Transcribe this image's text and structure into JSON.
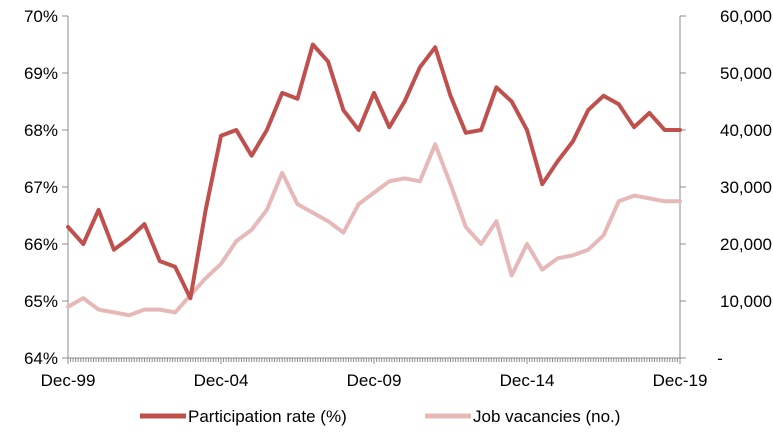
{
  "chart_data": {
    "type": "line",
    "x": [
      "Dec-99",
      "Jun-00",
      "Dec-00",
      "Jun-01",
      "Dec-01",
      "Jun-02",
      "Dec-02",
      "Jun-03",
      "Dec-03",
      "Jun-04",
      "Dec-04",
      "Jun-05",
      "Dec-05",
      "Jun-06",
      "Dec-06",
      "Jun-07",
      "Dec-07",
      "Jun-08",
      "Dec-08",
      "Jun-09",
      "Dec-09",
      "Jun-10",
      "Dec-10",
      "Jun-11",
      "Dec-11",
      "Jun-12",
      "Dec-12",
      "Jun-13",
      "Dec-13",
      "Jun-14",
      "Dec-14",
      "Jun-15",
      "Dec-15",
      "Jun-16",
      "Dec-16",
      "Jun-17",
      "Dec-17",
      "Jun-18",
      "Dec-18",
      "Jun-19",
      "Dec-19"
    ],
    "x_tick_labels": [
      "Dec-99",
      "Dec-04",
      "Dec-09",
      "Dec-14",
      "Dec-19"
    ],
    "y_left": {
      "lim": [
        64,
        70
      ],
      "ticks": [
        64,
        65,
        66,
        67,
        68,
        69,
        70
      ],
      "tick_labels": [
        "64%",
        "65%",
        "66%",
        "67%",
        "68%",
        "69%",
        "70%"
      ]
    },
    "y_right": {
      "lim": [
        0,
        60000
      ],
      "ticks": [
        0,
        10000,
        20000,
        30000,
        40000,
        50000,
        60000
      ],
      "tick_labels": [
        "-",
        "10,000",
        "20,000",
        "30,000",
        "40,000",
        "50,000",
        "60,000"
      ]
    },
    "series": [
      {
        "name": "Participation rate (%)",
        "axis": "left",
        "color": "#c0504d",
        "values": [
          66.3,
          66.0,
          66.6,
          65.9,
          66.1,
          66.35,
          65.7,
          65.6,
          65.05,
          66.6,
          67.9,
          68.0,
          67.55,
          68.0,
          68.65,
          68.55,
          69.5,
          69.2,
          68.35,
          68.0,
          68.65,
          68.05,
          68.5,
          69.1,
          69.45,
          68.6,
          67.95,
          68.0,
          68.75,
          68.5,
          68.0,
          67.05,
          67.45,
          67.8,
          68.35,
          68.6,
          68.45,
          68.05,
          68.3,
          68.0,
          68.0
        ]
      },
      {
        "name": "Job vacancies (no.)",
        "axis": "right",
        "color": "#e6b9b8",
        "values": [
          9000,
          10500,
          8500,
          8000,
          7500,
          8500,
          8500,
          8000,
          11000,
          14000,
          16500,
          20500,
          22500,
          26000,
          32500,
          27000,
          25500,
          24000,
          22000,
          27000,
          29000,
          31000,
          31500,
          31000,
          37500,
          30500,
          23000,
          20000,
          24000,
          14500,
          20000,
          15500,
          17500,
          18000,
          19000,
          21500,
          27500,
          28500,
          28000,
          27500,
          27500
        ]
      }
    ],
    "legend_position": "bottom",
    "grid": false
  }
}
